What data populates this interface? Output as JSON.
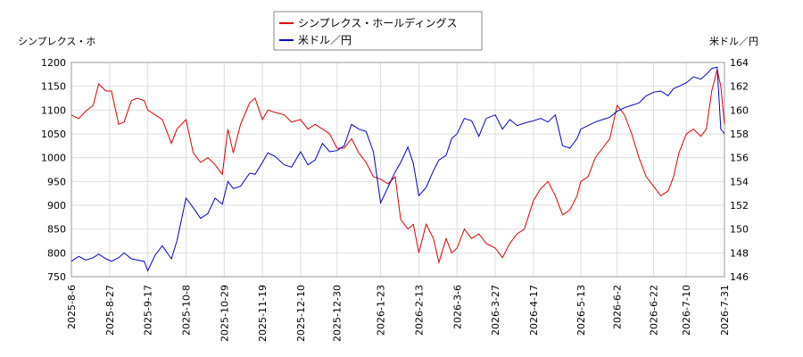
{
  "chart_data": {
    "type": "line",
    "left_axis_label": "シンプレクス・ホ",
    "right_axis_label": "米ドル／円",
    "legend": {
      "placement": "top-center",
      "entries": [
        {
          "label": "シンプレクス・ホールディングス",
          "color": "#dd0000"
        },
        {
          "label": "米ドル／円",
          "color": "#0000cc"
        }
      ]
    },
    "grid": true,
    "x_range": [
      "2025-8-6",
      "2026-7-31"
    ],
    "x_ticks": [
      "2025-8-6",
      "2025-8-27",
      "2025-9-17",
      "2025-10-8",
      "2025-10-29",
      "2025-11-19",
      "2025-12-10",
      "2025-12-30",
      "2026-1-23",
      "2026-2-13",
      "2026-3-6",
      "2026-3-27",
      "2026-4-17",
      "2026-5-13",
      "2026-6-2",
      "2026-6-22",
      "2026-7-10",
      "2026-7-31"
    ],
    "y_left": {
      "min": 750,
      "max": 1200,
      "ticks": [
        750,
        800,
        850,
        900,
        950,
        1000,
        1050,
        1100,
        1150,
        1200
      ]
    },
    "y_right": {
      "min": 146,
      "max": 164,
      "ticks": [
        146,
        148,
        150,
        152,
        154,
        156,
        158,
        160,
        162,
        164
      ]
    },
    "series": [
      {
        "name": "シンプレクス・ホールディングス",
        "axis": "left",
        "color": "#dd0000",
        "points": [
          [
            "2025-8-6",
            1090
          ],
          [
            "2025-8-10",
            1082
          ],
          [
            "2025-8-14",
            1098
          ],
          [
            "2025-8-18",
            1110
          ],
          [
            "2025-8-21",
            1155
          ],
          [
            "2025-8-25",
            1140
          ],
          [
            "2025-8-28",
            1140
          ],
          [
            "2025-9-1",
            1070
          ],
          [
            "2025-9-4",
            1075
          ],
          [
            "2025-9-8",
            1120
          ],
          [
            "2025-9-11",
            1125
          ],
          [
            "2025-9-15",
            1120
          ],
          [
            "2025-9-17",
            1100
          ],
          [
            "2025-9-21",
            1090
          ],
          [
            "2025-9-25",
            1080
          ],
          [
            "2025-9-30",
            1030
          ],
          [
            "2025-10-3",
            1060
          ],
          [
            "2025-10-8",
            1080
          ],
          [
            "2025-10-12",
            1010
          ],
          [
            "2025-10-16",
            990
          ],
          [
            "2025-10-20",
            1000
          ],
          [
            "2025-10-24",
            985
          ],
          [
            "2025-10-28",
            965
          ],
          [
            "2025-10-31",
            1060
          ],
          [
            "2025-11-3",
            1010
          ],
          [
            "2025-11-7",
            1070
          ],
          [
            "2025-11-12",
            1115
          ],
          [
            "2025-11-15",
            1125
          ],
          [
            "2025-11-19",
            1080
          ],
          [
            "2025-11-22",
            1100
          ],
          [
            "2025-11-26",
            1095
          ],
          [
            "2025-12-1",
            1090
          ],
          [
            "2025-12-5",
            1075
          ],
          [
            "2025-12-10",
            1080
          ],
          [
            "2025-12-14",
            1060
          ],
          [
            "2025-12-18",
            1070
          ],
          [
            "2025-12-22",
            1060
          ],
          [
            "2025-12-26",
            1050
          ],
          [
            "2025-12-30",
            1020
          ],
          [
            "2026-1-3",
            1020
          ],
          [
            "2026-1-7",
            1040
          ],
          [
            "2026-1-11",
            1010
          ],
          [
            "2026-1-15",
            990
          ],
          [
            "2026-1-19",
            960
          ],
          [
            "2026-1-23",
            955
          ],
          [
            "2026-1-27",
            945
          ],
          [
            "2026-1-31",
            960
          ],
          [
            "2026-2-3",
            870
          ],
          [
            "2026-2-7",
            850
          ],
          [
            "2026-2-10",
            860
          ],
          [
            "2026-2-13",
            800
          ],
          [
            "2026-2-17",
            860
          ],
          [
            "2026-2-21",
            830
          ],
          [
            "2026-2-24",
            780
          ],
          [
            "2026-2-28",
            830
          ],
          [
            "2026-3-3",
            800
          ],
          [
            "2026-3-6",
            810
          ],
          [
            "2026-3-10",
            850
          ],
          [
            "2026-3-14",
            830
          ],
          [
            "2026-3-18",
            840
          ],
          [
            "2026-3-22",
            820
          ],
          [
            "2026-3-27",
            810
          ],
          [
            "2026-3-31",
            790
          ],
          [
            "2026-4-4",
            820
          ],
          [
            "2026-4-8",
            840
          ],
          [
            "2026-4-12",
            850
          ],
          [
            "2026-4-17",
            910
          ],
          [
            "2026-4-21",
            935
          ],
          [
            "2026-4-25",
            950
          ],
          [
            "2026-4-29",
            920
          ],
          [
            "2026-5-3",
            880
          ],
          [
            "2026-5-7",
            890
          ],
          [
            "2026-5-11",
            920
          ],
          [
            "2026-5-13",
            950
          ],
          [
            "2026-5-17",
            960
          ],
          [
            "2026-5-21",
            1000
          ],
          [
            "2026-5-25",
            1020
          ],
          [
            "2026-5-29",
            1040
          ],
          [
            "2026-6-2",
            1110
          ],
          [
            "2026-6-6",
            1090
          ],
          [
            "2026-6-10",
            1050
          ],
          [
            "2026-6-14",
            1000
          ],
          [
            "2026-6-18",
            960
          ],
          [
            "2026-6-22",
            940
          ],
          [
            "2026-6-26",
            920
          ],
          [
            "2026-6-30",
            930
          ],
          [
            "2026-7-3",
            960
          ],
          [
            "2026-7-6",
            1010
          ],
          [
            "2026-7-10",
            1050
          ],
          [
            "2026-7-14",
            1060
          ],
          [
            "2026-7-18",
            1045
          ],
          [
            "2026-7-21",
            1060
          ],
          [
            "2026-7-24",
            1140
          ],
          [
            "2026-7-27",
            1185
          ],
          [
            "2026-7-29",
            1150
          ],
          [
            "2026-7-31",
            1070
          ]
        ]
      },
      {
        "name": "米ドル／円",
        "axis": "right",
        "color": "#0000cc",
        "points": [
          [
            "2025-8-6",
            147.3
          ],
          [
            "2025-8-10",
            147.7
          ],
          [
            "2025-8-14",
            147.4
          ],
          [
            "2025-8-18",
            147.6
          ],
          [
            "2025-8-21",
            147.9
          ],
          [
            "2025-8-25",
            147.5
          ],
          [
            "2025-8-28",
            147.3
          ],
          [
            "2025-9-1",
            147.6
          ],
          [
            "2025-9-4",
            148.0
          ],
          [
            "2025-9-8",
            147.5
          ],
          [
            "2025-9-11",
            147.4
          ],
          [
            "2025-9-15",
            147.3
          ],
          [
            "2025-9-17",
            146.5
          ],
          [
            "2025-9-21",
            147.8
          ],
          [
            "2025-9-25",
            148.6
          ],
          [
            "2025-9-30",
            147.5
          ],
          [
            "2025-10-3",
            149.0
          ],
          [
            "2025-10-8",
            152.6
          ],
          [
            "2025-10-12",
            151.8
          ],
          [
            "2025-10-16",
            150.9
          ],
          [
            "2025-10-20",
            151.3
          ],
          [
            "2025-10-24",
            152.6
          ],
          [
            "2025-10-28",
            152.1
          ],
          [
            "2025-10-31",
            154.0
          ],
          [
            "2025-11-3",
            153.4
          ],
          [
            "2025-11-7",
            153.6
          ],
          [
            "2025-11-12",
            154.7
          ],
          [
            "2025-11-15",
            154.6
          ],
          [
            "2025-11-19",
            155.6
          ],
          [
            "2025-11-22",
            156.4
          ],
          [
            "2025-11-26",
            156.1
          ],
          [
            "2025-12-1",
            155.4
          ],
          [
            "2025-12-5",
            155.2
          ],
          [
            "2025-12-10",
            156.5
          ],
          [
            "2025-12-14",
            155.4
          ],
          [
            "2025-12-18",
            155.8
          ],
          [
            "2025-12-22",
            157.2
          ],
          [
            "2025-12-26",
            156.5
          ],
          [
            "2025-12-30",
            156.6
          ],
          [
            "2026-1-3",
            157.0
          ],
          [
            "2026-1-7",
            158.8
          ],
          [
            "2026-1-11",
            158.4
          ],
          [
            "2026-1-15",
            158.2
          ],
          [
            "2026-1-19",
            156.5
          ],
          [
            "2026-1-23",
            152.2
          ],
          [
            "2026-1-27",
            153.5
          ],
          [
            "2026-1-31",
            154.8
          ],
          [
            "2026-2-3",
            155.6
          ],
          [
            "2026-2-7",
            156.9
          ],
          [
            "2026-2-10",
            155.5
          ],
          [
            "2026-2-13",
            152.8
          ],
          [
            "2026-2-17",
            153.5
          ],
          [
            "2026-2-21",
            154.9
          ],
          [
            "2026-2-24",
            155.8
          ],
          [
            "2026-2-28",
            156.2
          ],
          [
            "2026-3-3",
            157.6
          ],
          [
            "2026-3-6",
            158.0
          ],
          [
            "2026-3-10",
            159.3
          ],
          [
            "2026-3-14",
            159.1
          ],
          [
            "2026-3-18",
            157.8
          ],
          [
            "2026-3-22",
            159.3
          ],
          [
            "2026-3-27",
            159.6
          ],
          [
            "2026-3-31",
            158.4
          ],
          [
            "2026-4-4",
            159.2
          ],
          [
            "2026-4-8",
            158.7
          ],
          [
            "2026-4-12",
            158.9
          ],
          [
            "2026-4-17",
            159.1
          ],
          [
            "2026-4-21",
            159.3
          ],
          [
            "2026-4-25",
            159.0
          ],
          [
            "2026-4-29",
            159.6
          ],
          [
            "2026-5-3",
            157.0
          ],
          [
            "2026-5-7",
            156.8
          ],
          [
            "2026-5-11",
            157.6
          ],
          [
            "2026-5-13",
            158.4
          ],
          [
            "2026-5-17",
            158.7
          ],
          [
            "2026-5-21",
            159.0
          ],
          [
            "2026-5-25",
            159.2
          ],
          [
            "2026-5-29",
            159.4
          ],
          [
            "2026-6-2",
            159.9
          ],
          [
            "2026-6-6",
            160.2
          ],
          [
            "2026-6-10",
            160.4
          ],
          [
            "2026-6-14",
            160.6
          ],
          [
            "2026-6-18",
            161.2
          ],
          [
            "2026-6-22",
            161.5
          ],
          [
            "2026-6-26",
            161.6
          ],
          [
            "2026-6-30",
            161.2
          ],
          [
            "2026-7-3",
            161.8
          ],
          [
            "2026-7-6",
            162.0
          ],
          [
            "2026-7-10",
            162.3
          ],
          [
            "2026-7-14",
            162.8
          ],
          [
            "2026-7-18",
            162.6
          ],
          [
            "2026-7-21",
            163.0
          ],
          [
            "2026-7-24",
            163.5
          ],
          [
            "2026-7-27",
            163.6
          ],
          [
            "2026-7-29",
            158.4
          ],
          [
            "2026-7-31",
            158.0
          ]
        ]
      }
    ]
  }
}
